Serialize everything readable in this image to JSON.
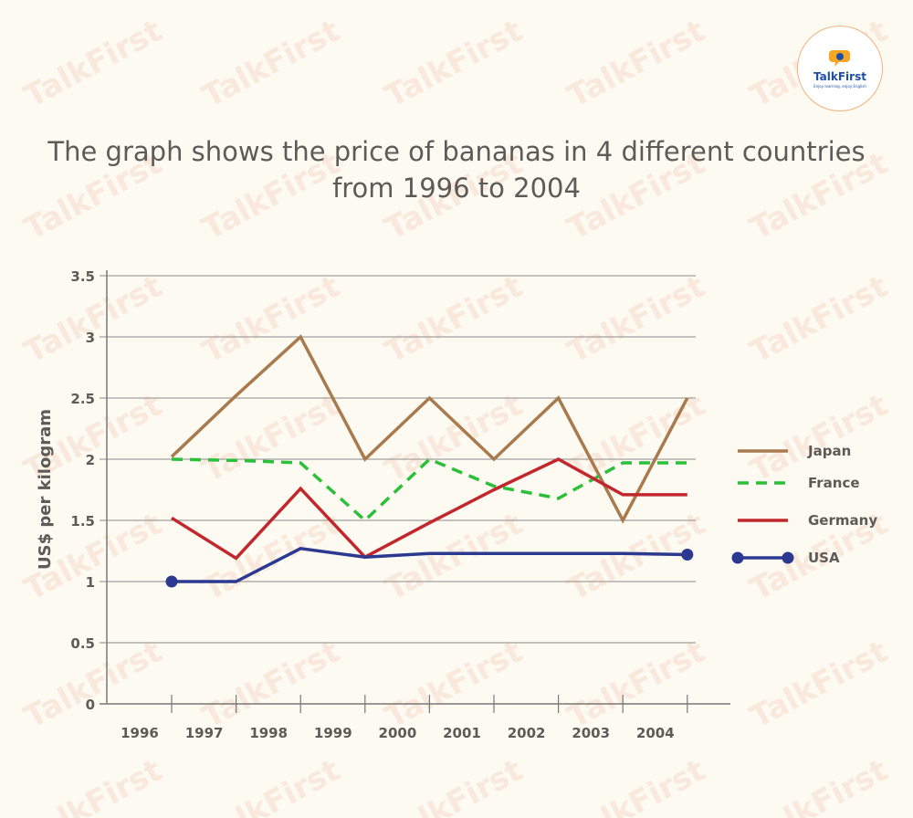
{
  "title_line1": "The graph shows the price of bananas in 4 different countries",
  "title_line2": "from 1996 to 2004",
  "logo": {
    "name": "TalkFirst",
    "tagline": "Enjoy learning, enjoy English",
    "icon": "speech-bubble-icon"
  },
  "watermark": "TalkFirst",
  "colors": {
    "background": "#fdfaf1",
    "Japan": "#a87a4e",
    "France": "#2cbf3a",
    "Germany": "#c1272d",
    "USA": "#2b3990",
    "axis": "#777777",
    "grid": "#8a8a8a",
    "text": "#5e5a57"
  },
  "chart_data": {
    "type": "line",
    "ylabel": "US$ per kilogram",
    "xlabel": "",
    "yticks": [
      "0",
      "0.5",
      "1",
      "1.5",
      "2",
      "2.5",
      "3",
      "3.5"
    ],
    "ylim": [
      0,
      3.5
    ],
    "xticks": [
      "1996",
      "1997",
      "1998",
      "1999",
      "2000",
      "2001",
      "2002",
      "2003",
      "2004"
    ],
    "x": [
      0,
      1,
      2,
      3,
      4,
      5,
      6,
      7,
      8
    ],
    "grid": true,
    "legend_position": "right",
    "series": [
      {
        "name": "Japan",
        "style": "solid",
        "values": [
          2.02,
          2.52,
          3.0,
          2.0,
          2.5,
          2.0,
          2.5,
          1.5,
          2.5
        ]
      },
      {
        "name": "France",
        "style": "dashed",
        "values": [
          2.0,
          1.99,
          1.97,
          1.5,
          2.0,
          1.78,
          1.68,
          1.97,
          1.97
        ]
      },
      {
        "name": "Germany",
        "style": "solid",
        "values": [
          1.52,
          1.19,
          1.76,
          1.2,
          1.48,
          1.75,
          2.0,
          1.71,
          1.71
        ]
      },
      {
        "name": "USA",
        "style": "solid-markers",
        "values": [
          1.0,
          1.0,
          1.27,
          1.2,
          1.23,
          1.23,
          1.23,
          1.23,
          1.22
        ]
      }
    ]
  }
}
